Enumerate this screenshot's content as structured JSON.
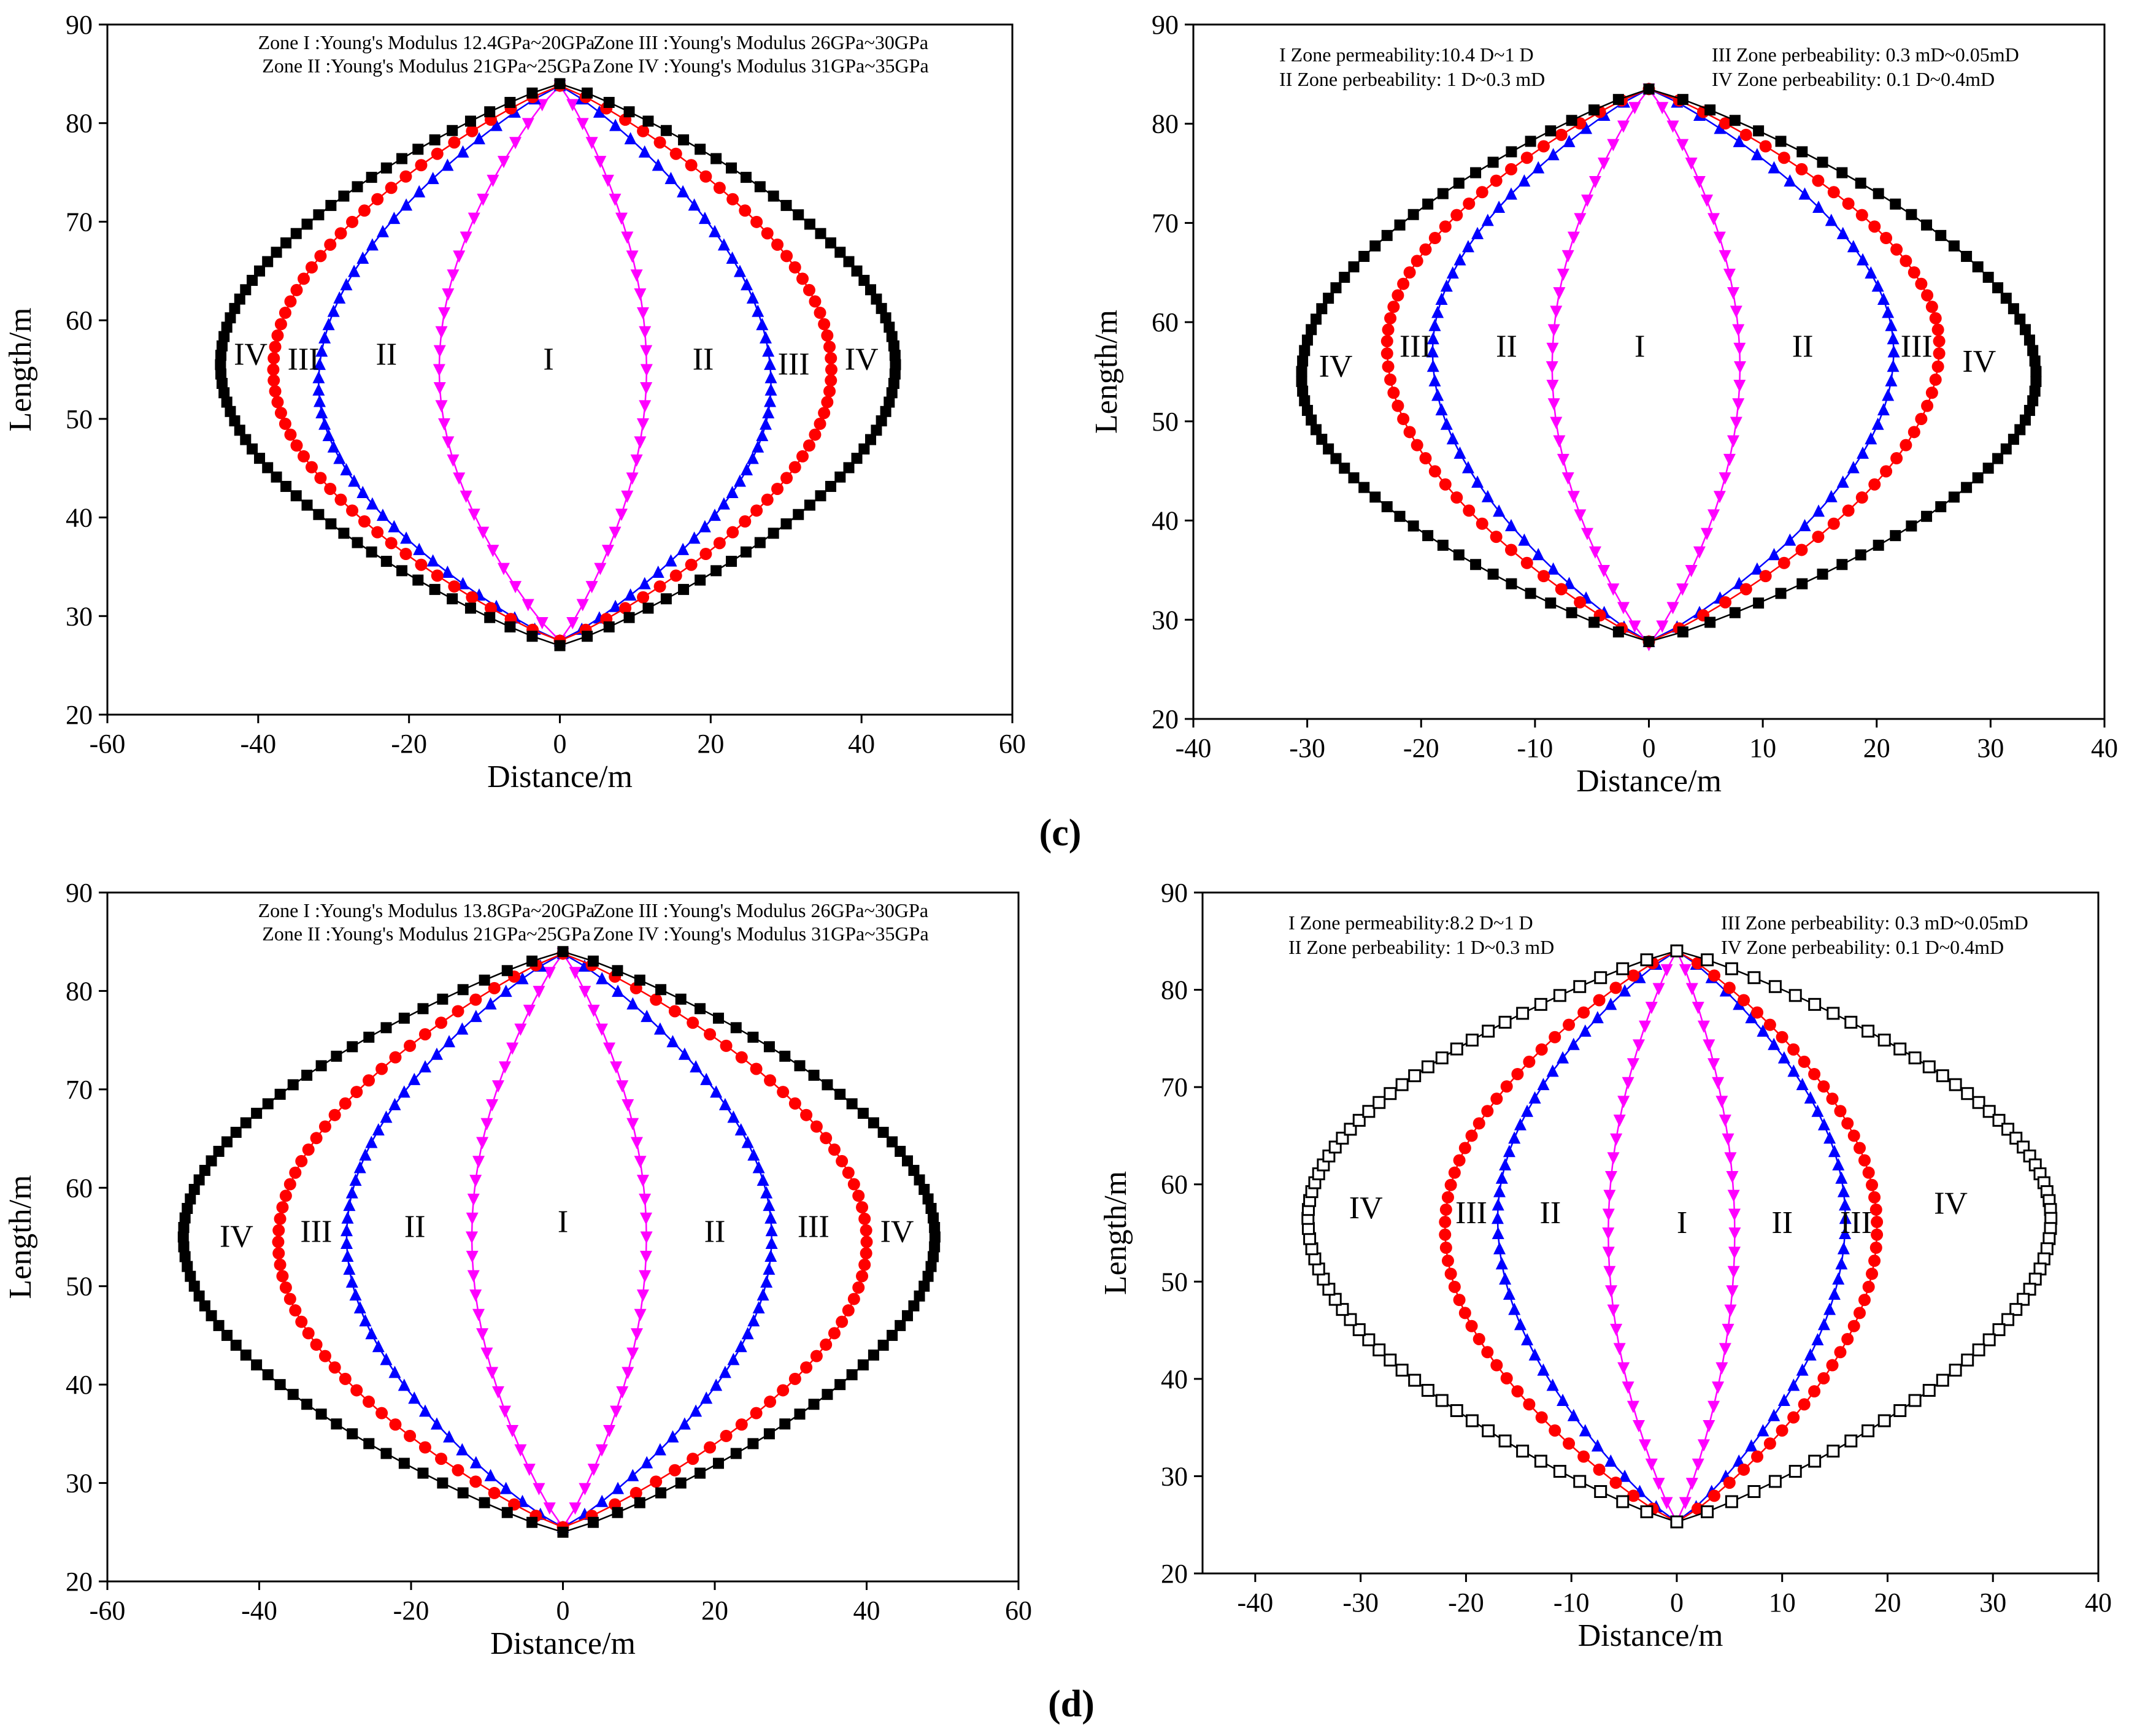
{
  "figure": {
    "panel_labels": [
      "(c)",
      "(d)"
    ],
    "colors": {
      "zone_I": "#ff00ff",
      "zone_II": "#0000ff",
      "zone_III": "#ff0000",
      "zone_IV": "#000000"
    }
  },
  "chart_data": [
    {
      "type": "line",
      "xlabel": "Distance/m",
      "ylabel": "Length/m",
      "xlim": [
        -60,
        60
      ],
      "ylim": [
        20,
        90
      ],
      "xticks": [
        -60,
        -40,
        -20,
        0,
        20,
        40,
        60
      ],
      "yticks": [
        20,
        30,
        40,
        50,
        60,
        70,
        80,
        90
      ],
      "annotations": [
        "Zone I :Young's Modulus 12.4GPa~20GPa",
        "Zone II :Young's Modulus 21GPa~25GPa",
        "Zone III :Young's Modulus 26GPa~30GPa",
        "Zone IV :Young's Modulus 31GPa~35GPa"
      ],
      "zone_labels": [
        {
          "text": "IV",
          "x": -41,
          "y": 55.5
        },
        {
          "text": "III",
          "x": -34,
          "y": 55
        },
        {
          "text": "II",
          "x": -23,
          "y": 55.5
        },
        {
          "text": "I",
          "x": -1.5,
          "y": 55
        },
        {
          "text": "II",
          "x": 19,
          "y": 55
        },
        {
          "text": "III",
          "x": 31,
          "y": 54.5
        },
        {
          "text": "IV",
          "x": 40,
          "y": 55
        },
        {
          "text": "",
          "x": 0,
          "y": 0
        }
      ],
      "series": [
        {
          "marker": "triangle-down",
          "top": 83.8,
          "bottom": 27.5,
          "mid_y": 55,
          "left_x": -16,
          "right_x": 11.5,
          "offset": [
            0,
            0,
            0,
            0,
            0,
            0,
            0,
            0,
            0,
            0,
            0,
            0,
            0,
            0,
            0,
            0,
            0,
            0,
            0,
            0,
            0,
            0,
            0,
            0,
            0
          ],
          "points": 60
        },
        {
          "marker": "triangle-up",
          "top": 83.8,
          "bottom": 27.5,
          "mid_y": 53.5,
          "left_x": -32,
          "right_x": 28,
          "points": 90
        },
        {
          "marker": "circle",
          "top": 83.8,
          "bottom": 27.5,
          "mid_y": 55,
          "left_x": -38,
          "right_x": 36,
          "points": 100
        },
        {
          "marker": "square",
          "top": 84,
          "bottom": 27,
          "mid_y": 55.5,
          "left_x": -45,
          "right_x": 44.5,
          "points": 120
        }
      ]
    },
    {
      "type": "line",
      "xlabel": "Distance/m",
      "ylabel": "Length/m",
      "xlim": [
        -40,
        40
      ],
      "ylim": [
        20,
        90
      ],
      "xticks": [
        -40,
        -30,
        -20,
        -10,
        0,
        10,
        20,
        30,
        40
      ],
      "yticks": [
        20,
        30,
        40,
        50,
        60,
        70,
        80,
        90
      ],
      "annotations": [
        "I Zone permeability:10.4 D~1 D",
        "II Zone perbeability: 1 D~0.3 mD",
        "III Zone perbeability: 0.3 mD~0.05mD",
        "IV Zone perbeability: 0.1 D~0.4mD"
      ],
      "zone_labels": [
        {
          "text": "IV",
          "x": -27.5,
          "y": 54.5
        },
        {
          "text": "III",
          "x": -20.5,
          "y": 56.5
        },
        {
          "text": "II",
          "x": -12.5,
          "y": 56.5
        },
        {
          "text": "I",
          "x": -0.8,
          "y": 56.5
        },
        {
          "text": "II",
          "x": 13.5,
          "y": 56.5
        },
        {
          "text": "III",
          "x": 23.5,
          "y": 56.5
        },
        {
          "text": "IV",
          "x": 29,
          "y": 55
        }
      ],
      "series": [
        {
          "marker": "triangle-down",
          "top": 83.5,
          "bottom": 27.5,
          "mid_y": 55.5,
          "left_x": -8.5,
          "right_x": 8,
          "points": 60
        },
        {
          "marker": "triangle-up",
          "top": 83.5,
          "bottom": 27.8,
          "mid_y": 57,
          "left_x": -19,
          "right_x": 21.5,
          "points": 80
        },
        {
          "marker": "circle",
          "top": 83.5,
          "bottom": 27.8,
          "mid_y": 57.5,
          "left_x": -23,
          "right_x": 25.5,
          "points": 90
        },
        {
          "marker": "square",
          "top": 83.5,
          "bottom": 27.8,
          "mid_y": 54.5,
          "left_x": -30.5,
          "right_x": 34,
          "points": 110
        }
      ]
    },
    {
      "type": "line",
      "xlabel": "Distance/m",
      "ylabel": "Length/m",
      "xlim": [
        -60,
        60
      ],
      "ylim": [
        20,
        90
      ],
      "xticks": [
        -60,
        -40,
        -20,
        0,
        20,
        40,
        60
      ],
      "yticks": [
        20,
        30,
        40,
        50,
        60,
        70,
        80,
        90
      ],
      "annotations": [
        "Zone I :Young's Modulus 13.8GPa~20GPa",
        "Zone II :Young's Modulus 21GPa~25GPa",
        "Zone III :Young's Modulus 26GPa~30GPa",
        "Zone IV :Young's Modulus 31GPa~35GPa"
      ],
      "zone_labels": [
        {
          "text": "IV",
          "x": -43,
          "y": 54
        },
        {
          "text": "III",
          "x": -32.5,
          "y": 54.5
        },
        {
          "text": "II",
          "x": -19.5,
          "y": 55
        },
        {
          "text": "I",
          "x": 0,
          "y": 55.5
        },
        {
          "text": "II",
          "x": 20,
          "y": 54.5
        },
        {
          "text": "III",
          "x": 33,
          "y": 55
        },
        {
          "text": "IV",
          "x": 44,
          "y": 54.5
        }
      ],
      "series": [
        {
          "marker": "triangle-down",
          "top": 83.8,
          "bottom": 25.5,
          "mid_y": 55,
          "left_x": -12,
          "right_x": 11,
          "points": 60
        },
        {
          "marker": "triangle-up",
          "top": 83.8,
          "bottom": 25.5,
          "mid_y": 55,
          "left_x": -28.5,
          "right_x": 27.5,
          "points": 90
        },
        {
          "marker": "circle",
          "top": 83.8,
          "bottom": 25.5,
          "mid_y": 54.5,
          "left_x": -37.5,
          "right_x": 40,
          "points": 100
        },
        {
          "marker": "square",
          "top": 84,
          "bottom": 25,
          "mid_y": 55,
          "left_x": -50,
          "right_x": 49,
          "points": 120
        }
      ]
    },
    {
      "type": "line",
      "xlabel": "Distance/m",
      "ylabel": "Length/m",
      "xlim": [
        -45,
        40
      ],
      "ylim": [
        20,
        90
      ],
      "xticks": [
        -40,
        -30,
        -20,
        -10,
        0,
        10,
        20,
        30,
        40
      ],
      "yticks": [
        20,
        30,
        40,
        50,
        60,
        70,
        80,
        90
      ],
      "annotations": [
        "I Zone permeability:8.2 D~1 D",
        "II Zone perbeability: 1 D~0.3 mD",
        "III Zone perbeability: 0.3 mD~0.05mD",
        "IV Zone perbeability: 0.1 D~0.4mD"
      ],
      "zone_labels": [
        {
          "text": "IV",
          "x": -29.5,
          "y": 56.5
        },
        {
          "text": "III",
          "x": -19.5,
          "y": 56
        },
        {
          "text": "II",
          "x": -12,
          "y": 56
        },
        {
          "text": "I",
          "x": 0.5,
          "y": 55
        },
        {
          "text": "II",
          "x": 10,
          "y": 55
        },
        {
          "text": "III",
          "x": 17,
          "y": 55
        },
        {
          "text": "IV",
          "x": 26,
          "y": 57
        }
      ],
      "series": [
        {
          "marker": "triangle-down",
          "top": 84,
          "bottom": 25.3,
          "mid_y": 55,
          "left_x": -6.5,
          "right_x": 5.5,
          "points": 60
        },
        {
          "marker": "triangle-up",
          "top": 84,
          "bottom": 25.3,
          "mid_y": 56.5,
          "left_x": -17,
          "right_x": 16,
          "points": 80
        },
        {
          "marker": "circle",
          "top": 84,
          "bottom": 25.3,
          "mid_y": 55.5,
          "left_x": -22,
          "right_x": 19,
          "points": 90
        },
        {
          "marker": "square-open",
          "top": 84,
          "bottom": 25.3,
          "mid_y": 56.5,
          "left_x": -35,
          "right_x": 35.5,
          "points": 120
        }
      ]
    }
  ]
}
